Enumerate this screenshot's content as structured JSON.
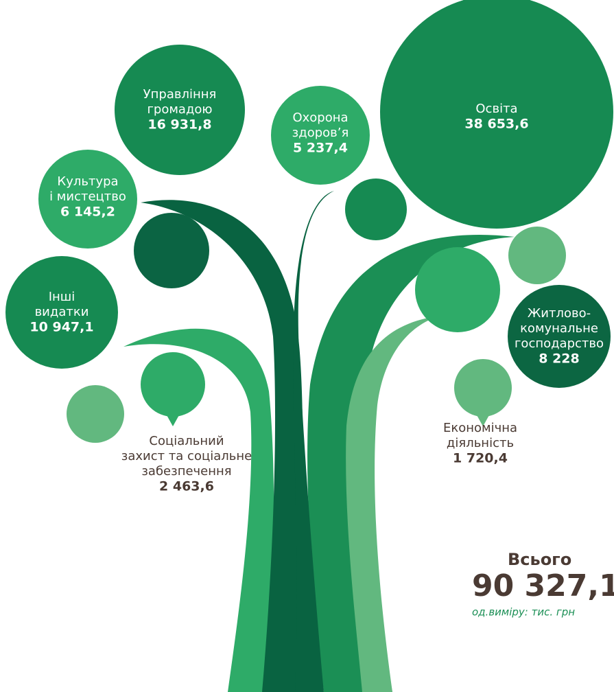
{
  "items": [
    {
      "label": [
        "Управління",
        "громадою"
      ],
      "value": "16 931,8"
    },
    {
      "label": [
        "Охорона",
        "здоров’я"
      ],
      "value": "5 237,4"
    },
    {
      "label": [
        "Освіта"
      ],
      "value": "38 653,6"
    },
    {
      "label": [
        "Культура",
        "і мистецтво"
      ],
      "value": "6 145,2"
    },
    {
      "label": [
        "Інші",
        "видатки"
      ],
      "value": "10 947,1"
    },
    {
      "label": [
        "Житлово-",
        "комунальне",
        "господарство"
      ],
      "value": "8 228"
    },
    {
      "label": [
        "Соціальний",
        "захист та соціальне",
        "забезпечення"
      ],
      "value": "2 463,6"
    },
    {
      "label": [
        "Економічна",
        "діяльність"
      ],
      "value": "1 720,4"
    }
  ],
  "total": {
    "title": "Всього",
    "value": "90 327,1",
    "unit": "од.виміру: тис. грн"
  }
}
